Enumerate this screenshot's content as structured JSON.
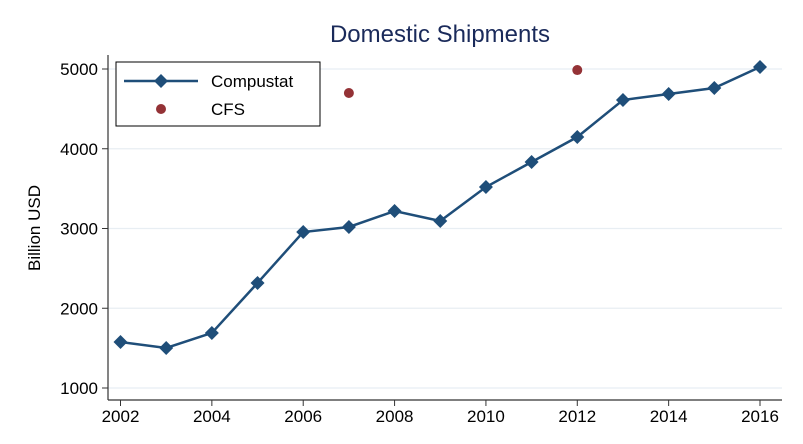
{
  "chart_data": {
    "type": "line",
    "title": "Domestic Shipments",
    "xlabel": "",
    "ylabel": "Billion USD",
    "xlim": [
      2002,
      2016
    ],
    "ylim": [
      1000,
      5000
    ],
    "xticks": [
      2002,
      2004,
      2006,
      2008,
      2010,
      2012,
      2014,
      2016
    ],
    "yticks": [
      1000,
      2000,
      3000,
      4000,
      5000
    ],
    "grid": "horizontal",
    "legend_position": "top-left",
    "series": [
      {
        "name": "Compustat",
        "kind": "line-diamond",
        "color": "#1f4e79",
        "x": [
          2002,
          2003,
          2004,
          2005,
          2006,
          2007,
          2008,
          2009,
          2010,
          2011,
          2012,
          2013,
          2014,
          2015,
          2016
        ],
        "values": [
          1577,
          1502,
          1690,
          2317,
          2956,
          3019,
          3219,
          3094,
          3520,
          3834,
          4147,
          4611,
          4687,
          4762,
          5025
        ]
      },
      {
        "name": "CFS",
        "kind": "scatter-circle",
        "color": "#943236",
        "x": [
          2007,
          2012
        ],
        "values": [
          4699,
          4987
        ]
      }
    ]
  }
}
